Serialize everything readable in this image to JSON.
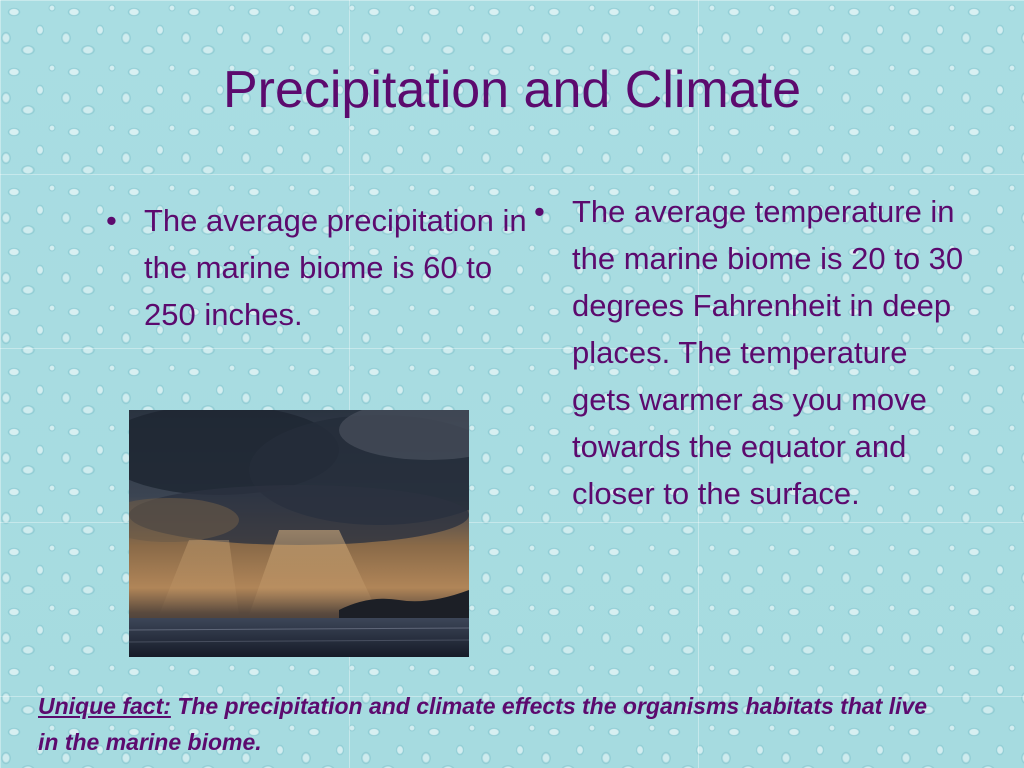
{
  "slide": {
    "title": "Precipitation and Climate",
    "left_bullet": {
      "symbol": "•",
      "text": "The average precipitation in the marine biome is 60 to 250 inches."
    },
    "right_bullet": {
      "symbol": "•",
      "text": "The average temperature in the marine biome is 20 to 30 degrees Fahrenheit in deep places. The temperature gets warmer as you move towards the equator and closer to the surface."
    },
    "footer": {
      "label": "Unique fact:",
      "text": " The precipitation and climate effects the organisms habitats that live in the marine biome."
    },
    "colors": {
      "text": "#5c0a6e",
      "background": "#a9dde2"
    }
  }
}
